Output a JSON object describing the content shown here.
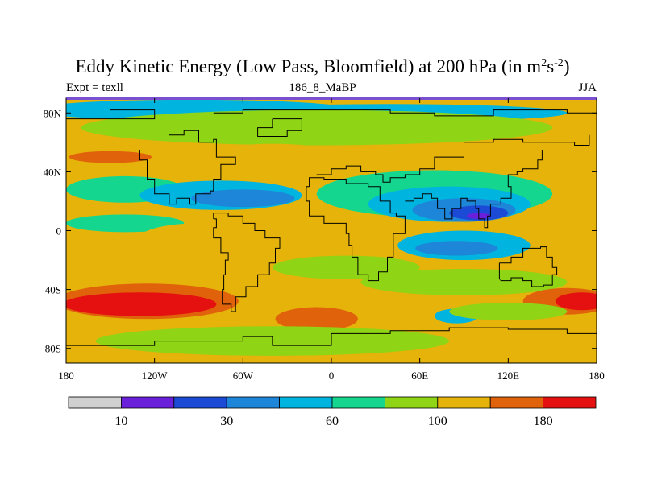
{
  "chart_data": {
    "type": "heatmap",
    "title_main": "Eddy Kinetic Energy (Low Pass, Bloomfield) at 200 hPa (in m",
    "title_sup1": "2",
    "title_mid": "s",
    "title_sup2": "-2",
    "title_end": ")",
    "subtitle_left": "Expt = texll",
    "subtitle_center": "186_8_MaBP",
    "subtitle_right": "JJA",
    "x_range": [
      -180,
      180
    ],
    "y_range": [
      -90,
      90
    ],
    "x_ticks": [
      {
        "value": -180,
        "label": "180"
      },
      {
        "value": -120,
        "label": "120W"
      },
      {
        "value": -60,
        "label": "60W"
      },
      {
        "value": 0,
        "label": "0"
      },
      {
        "value": 60,
        "label": "60E"
      },
      {
        "value": 120,
        "label": "120E"
      },
      {
        "value": 180,
        "label": "180"
      }
    ],
    "y_ticks": [
      {
        "value": 80,
        "label": "80N"
      },
      {
        "value": 40,
        "label": "40N"
      },
      {
        "value": 0,
        "label": "0"
      },
      {
        "value": -40,
        "label": "40S"
      },
      {
        "value": -80,
        "label": "80S"
      }
    ],
    "colorbar": {
      "colors": [
        "#d0d0d0",
        "#6a1fdb",
        "#1b4bd6",
        "#1e86d8",
        "#00b4e0",
        "#14d68e",
        "#8fd415",
        "#e6b30a",
        "#e0620a",
        "#e51010"
      ],
      "labels": [
        {
          "boundary": 1,
          "label": "10"
        },
        {
          "boundary": 3,
          "label": "30"
        },
        {
          "boundary": 5,
          "label": "60"
        },
        {
          "boundary": 7,
          "label": "100"
        },
        {
          "boundary": 9,
          "label": "180"
        }
      ]
    },
    "field": {
      "background_level": 7,
      "blobs": [
        {
          "lon": -95,
          "lat": 82,
          "rx": 110,
          "ry": 7,
          "level": 4
        },
        {
          "lon": 40,
          "lat": 80,
          "rx": 120,
          "ry": 6,
          "level": 4
        },
        {
          "lon": -10,
          "lat": 70,
          "rx": 160,
          "ry": 12,
          "level": 6
        },
        {
          "lon": -140,
          "lat": 52,
          "rx": 45,
          "ry": 7,
          "level": 7
        },
        {
          "lon": -150,
          "lat": 50,
          "rx": 28,
          "ry": 4,
          "level": 8
        },
        {
          "lon": 150,
          "lat": 52,
          "rx": 40,
          "ry": 9,
          "level": 7
        },
        {
          "lon": -40,
          "lat": 46,
          "rx": 60,
          "ry": 13,
          "level": 7
        },
        {
          "lon": -140,
          "lat": 28,
          "rx": 40,
          "ry": 9,
          "level": 5
        },
        {
          "lon": -75,
          "lat": 24,
          "rx": 55,
          "ry": 10,
          "level": 4
        },
        {
          "lon": -60,
          "lat": 22,
          "rx": 35,
          "ry": 6,
          "level": 3
        },
        {
          "lon": 70,
          "lat": 25,
          "rx": 80,
          "ry": 16,
          "level": 5
        },
        {
          "lon": 80,
          "lat": 18,
          "rx": 55,
          "ry": 12,
          "level": 4
        },
        {
          "lon": 90,
          "lat": 14,
          "rx": 35,
          "ry": 8,
          "level": 3
        },
        {
          "lon": 100,
          "lat": 12,
          "rx": 20,
          "ry": 5,
          "level": 2
        },
        {
          "lon": 100,
          "lat": 10,
          "rx": 8,
          "ry": 2,
          "level": 1
        },
        {
          "lon": -140,
          "lat": 5,
          "rx": 40,
          "ry": 6,
          "level": 5
        },
        {
          "lon": -90,
          "lat": -5,
          "rx": 40,
          "ry": 10,
          "level": 7
        },
        {
          "lon": 20,
          "lat": -5,
          "rx": 40,
          "ry": 10,
          "level": 7
        },
        {
          "lon": 90,
          "lat": -10,
          "rx": 45,
          "ry": 10,
          "level": 4
        },
        {
          "lon": 85,
          "lat": -12,
          "rx": 28,
          "ry": 5,
          "level": 3
        },
        {
          "lon": 10,
          "lat": -25,
          "rx": 50,
          "ry": 8,
          "level": 6
        },
        {
          "lon": 90,
          "lat": -35,
          "rx": 70,
          "ry": 9,
          "level": 6
        },
        {
          "lon": -130,
          "lat": -45,
          "rx": 65,
          "ry": 15,
          "level": 7
        },
        {
          "lon": -125,
          "lat": -48,
          "rx": 62,
          "ry": 12,
          "level": 8
        },
        {
          "lon": -130,
          "lat": -50,
          "rx": 52,
          "ry": 8,
          "level": 9
        },
        {
          "lon": -10,
          "lat": -60,
          "rx": 28,
          "ry": 8,
          "level": 8
        },
        {
          "lon": 160,
          "lat": -48,
          "rx": 30,
          "ry": 9,
          "level": 8
        },
        {
          "lon": 170,
          "lat": -48,
          "rx": 18,
          "ry": 6,
          "level": 9
        },
        {
          "lon": 85,
          "lat": -58,
          "rx": 15,
          "ry": 5,
          "level": 4
        },
        {
          "lon": 120,
          "lat": -55,
          "rx": 40,
          "ry": 6,
          "level": 6
        },
        {
          "lon": -40,
          "lat": -75,
          "rx": 120,
          "ry": 10,
          "level": 6
        }
      ]
    },
    "coastline_segments": [
      [
        [
          -150,
          82
        ],
        [
          -120,
          82
        ],
        [
          -120,
          76
        ],
        [
          -150,
          76
        ],
        [
          -180,
          78
        ]
      ],
      [
        [
          -80,
          80
        ],
        [
          -60,
          82
        ],
        [
          -10,
          82
        ],
        [
          40,
          80
        ],
        [
          70,
          78
        ],
        [
          110,
          82
        ],
        [
          160,
          80
        ],
        [
          180,
          78
        ]
      ],
      [
        [
          -40,
          76
        ],
        [
          -22,
          76
        ],
        [
          -20,
          68
        ],
        [
          -30,
          64
        ],
        [
          -42,
          64
        ],
        [
          -50,
          70
        ],
        [
          -40,
          76
        ]
      ],
      [
        [
          -110,
          65
        ],
        [
          -100,
          68
        ],
        [
          -90,
          60
        ],
        [
          -80,
          62
        ],
        [
          -78,
          50
        ],
        [
          -65,
          45
        ],
        [
          -75,
          35
        ],
        [
          -80,
          27
        ],
        [
          -82,
          25
        ],
        [
          -92,
          18
        ],
        [
          -96,
          22
        ],
        [
          -105,
          18
        ],
        [
          -110,
          25
        ],
        [
          -120,
          35
        ],
        [
          -125,
          48
        ],
        [
          -130,
          55
        ]
      ],
      [
        [
          -80,
          8
        ],
        [
          -78,
          2
        ],
        [
          -80,
          -5
        ],
        [
          -75,
          -15
        ],
        [
          -70,
          -20
        ],
        [
          -72,
          -30
        ],
        [
          -73,
          -40
        ],
        [
          -74,
          -50
        ],
        [
          -68,
          -55
        ],
        [
          -65,
          -45
        ],
        [
          -58,
          -38
        ],
        [
          -50,
          -30
        ],
        [
          -42,
          -22
        ],
        [
          -38,
          -12
        ],
        [
          -35,
          -5
        ],
        [
          -45,
          0
        ],
        [
          -52,
          5
        ],
        [
          -60,
          10
        ],
        [
          -70,
          12
        ],
        [
          -80,
          8
        ]
      ],
      [
        [
          -10,
          38
        ],
        [
          0,
          42
        ],
        [
          10,
          44
        ],
        [
          20,
          40
        ],
        [
          30,
          38
        ],
        [
          35,
          33
        ],
        [
          40,
          36
        ],
        [
          50,
          38
        ],
        [
          60,
          42
        ],
        [
          70,
          50
        ],
        [
          90,
          60
        ],
        [
          110,
          62
        ],
        [
          130,
          60
        ],
        [
          150,
          60
        ],
        [
          165,
          58
        ],
        [
          175,
          65
        ]
      ],
      [
        [
          -15,
          30
        ],
        [
          -17,
          20
        ],
        [
          -15,
          10
        ],
        [
          -5,
          5
        ],
        [
          8,
          5
        ],
        [
          10,
          -2
        ],
        [
          12,
          -10
        ],
        [
          14,
          -18
        ],
        [
          18,
          -30
        ],
        [
          25,
          -34
        ],
        [
          32,
          -28
        ],
        [
          38,
          -18
        ],
        [
          42,
          -10
        ],
        [
          42,
          -2
        ],
        [
          50,
          10
        ],
        [
          44,
          12
        ],
        [
          40,
          20
        ],
        [
          33,
          30
        ],
        [
          25,
          32
        ],
        [
          10,
          35
        ],
        [
          -5,
          36
        ],
        [
          -15,
          30
        ]
      ],
      [
        [
          50,
          20
        ],
        [
          56,
          22
        ],
        [
          62,
          25
        ],
        [
          68,
          22
        ],
        [
          72,
          15
        ],
        [
          77,
          8
        ],
        [
          82,
          15
        ],
        [
          88,
          22
        ],
        [
          92,
          20
        ],
        [
          98,
          15
        ],
        [
          100,
          8
        ],
        [
          104,
          2
        ],
        [
          106,
          10
        ],
        [
          108,
          18
        ],
        [
          115,
          22
        ],
        [
          122,
          30
        ],
        [
          120,
          38
        ],
        [
          126,
          40
        ],
        [
          130,
          42
        ],
        [
          140,
          48
        ],
        [
          143,
          55
        ]
      ],
      [
        [
          114,
          -22
        ],
        [
          122,
          -18
        ],
        [
          130,
          -12
        ],
        [
          137,
          -12
        ],
        [
          142,
          -11
        ],
        [
          146,
          -18
        ],
        [
          150,
          -25
        ],
        [
          153,
          -30
        ],
        [
          150,
          -37
        ],
        [
          144,
          -38
        ],
        [
          136,
          -34
        ],
        [
          130,
          -32
        ],
        [
          122,
          -34
        ],
        [
          115,
          -33
        ],
        [
          114,
          -22
        ]
      ],
      [
        [
          -180,
          -78
        ],
        [
          -120,
          -75
        ],
        [
          -60,
          -72
        ],
        [
          -40,
          -78
        ],
        [
          0,
          -70
        ],
        [
          40,
          -68
        ],
        [
          80,
          -66
        ],
        [
          120,
          -67
        ],
        [
          160,
          -70
        ],
        [
          180,
          -78
        ]
      ]
    ]
  }
}
